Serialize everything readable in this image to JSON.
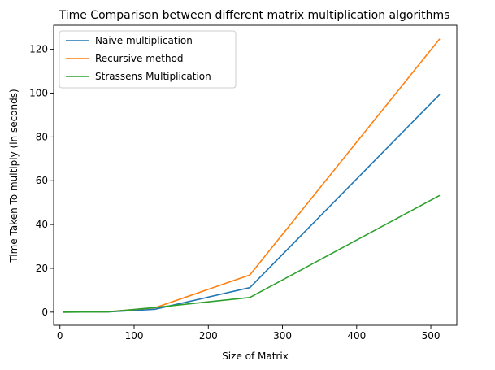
{
  "chart_data": {
    "type": "line",
    "title": "Time Comparison between different matrix multiplication algorithms",
    "xlabel": "Size of Matrix",
    "ylabel": "Time Taken To multiply (in seconds)",
    "xlim": [
      -8.5,
      535
    ],
    "ylim": [
      -6,
      131
    ],
    "xticks": [
      0,
      100,
      200,
      300,
      400,
      500
    ],
    "yticks": [
      0,
      20,
      40,
      60,
      80,
      100,
      120
    ],
    "grid": false,
    "legend_position": "top-left",
    "x": [
      4,
      64,
      128,
      256,
      512
    ],
    "series": [
      {
        "name": "Naive multiplication",
        "color": "#1f77b4",
        "values": [
          0.0,
          0.1,
          1.3,
          11.2,
          99.4
        ]
      },
      {
        "name": "Recursive method",
        "color": "#ff7f0e",
        "values": [
          0.0,
          0.2,
          2.0,
          17.0,
          124.8
        ]
      },
      {
        "name": "Strassens Multiplication",
        "color": "#2ca02c",
        "values": [
          0.0,
          0.1,
          2.1,
          6.7,
          53.3
        ]
      }
    ]
  }
}
